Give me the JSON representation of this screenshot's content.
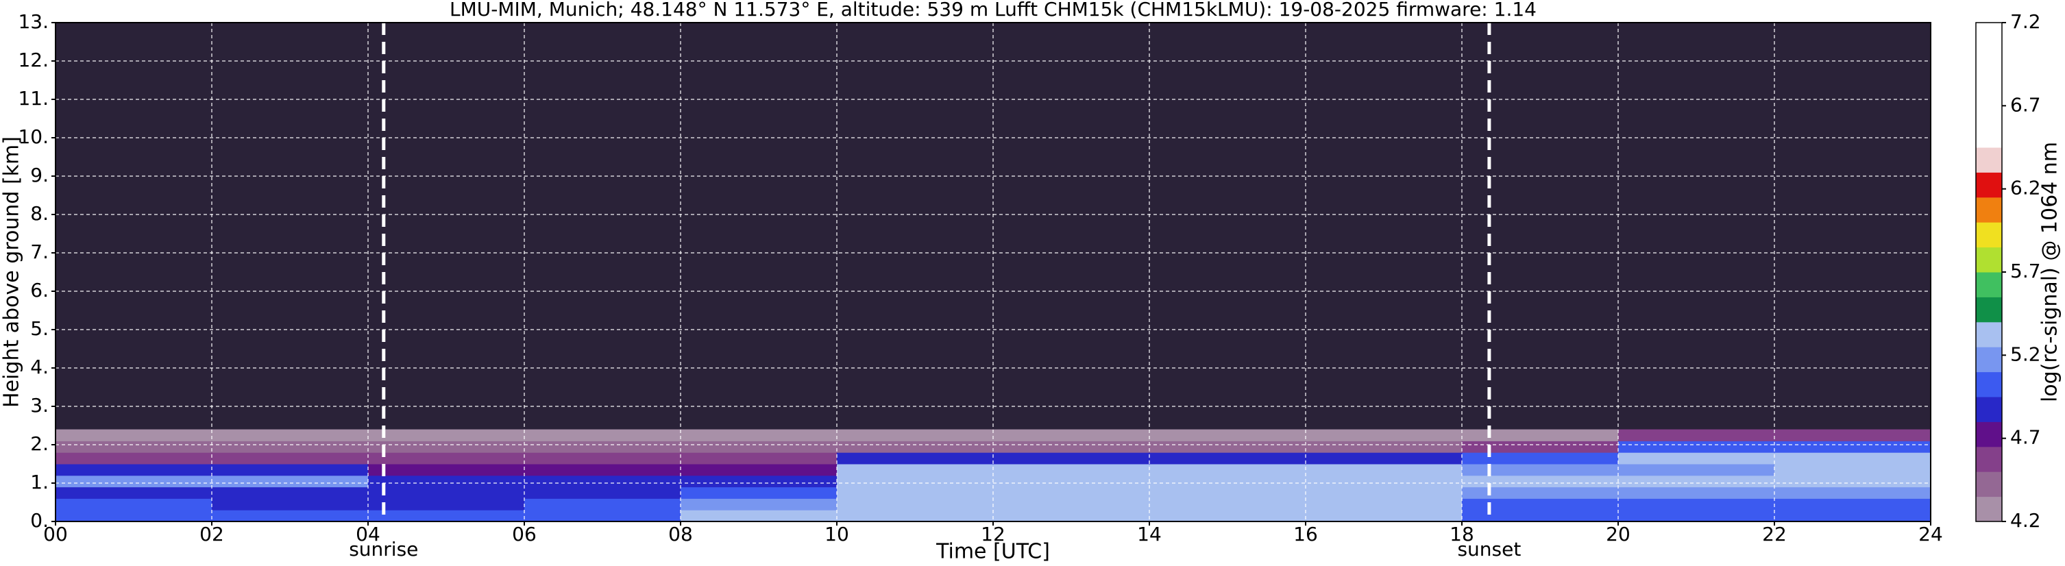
{
  "chart_data": {
    "type": "heatmap",
    "title": "LMU-MIM, Munich; 48.148° N 11.573° E, altitude: 539 m    Lufft CHM15k (CHM15kLMU): 19-08-2025    firmware: 1.14",
    "x_label": "Time [UTC]",
    "y_label": "Height above ground [km]",
    "colorbar_label": "log(rc-signal) @ 1064 nm",
    "xlim": [
      0,
      24
    ],
    "xticks": [
      {
        "value": 0,
        "label": "00"
      },
      {
        "value": 2,
        "label": "02"
      },
      {
        "value": 4,
        "label": "04"
      },
      {
        "value": 6,
        "label": "06"
      },
      {
        "value": 8,
        "label": "08"
      },
      {
        "value": 10,
        "label": "10"
      },
      {
        "value": 12,
        "label": "12"
      },
      {
        "value": 14,
        "label": "14"
      },
      {
        "value": 16,
        "label": "16"
      },
      {
        "value": 18,
        "label": "18"
      },
      {
        "value": 20,
        "label": "20"
      },
      {
        "value": 22,
        "label": "22"
      },
      {
        "value": 24,
        "label": "24"
      }
    ],
    "ylim": [
      0,
      13
    ],
    "yticks": [
      {
        "value": 0,
        "label": "0."
      },
      {
        "value": 1,
        "label": "1."
      },
      {
        "value": 2,
        "label": "2."
      },
      {
        "value": 3,
        "label": "3."
      },
      {
        "value": 4,
        "label": "4."
      },
      {
        "value": 5,
        "label": "5."
      },
      {
        "value": 6,
        "label": "6."
      },
      {
        "value": 7,
        "label": "7."
      },
      {
        "value": 8,
        "label": "8."
      },
      {
        "value": 9,
        "label": "9."
      },
      {
        "value": 10,
        "label": "10."
      },
      {
        "value": 11,
        "label": "11."
      },
      {
        "value": 12,
        "label": "12."
      },
      {
        "value": 13,
        "label": "13."
      }
    ],
    "grid": true,
    "background": "#2a2238",
    "clim": [
      4.2,
      7.2
    ],
    "cticks": [
      4.2,
      4.7,
      5.2,
      5.7,
      6.2,
      6.7,
      7.2
    ],
    "colors": [
      "#a890a8",
      "#946894",
      "#84408a",
      "#60108a",
      "#2828c8",
      "#3c5af0",
      "#7896f0",
      "#a8c0f0",
      "#109048",
      "#40c060",
      "#b0e030",
      "#f0e020",
      "#f08010",
      "#e01010",
      "#f0d0d0",
      "#ffffff",
      "#ffffff",
      "#ffffff",
      "#ffffff",
      "#ffffff"
    ],
    "x_edges": [
      0,
      2,
      4,
      6,
      8,
      10,
      12,
      14,
      16,
      18,
      20,
      22,
      24
    ],
    "y_edges": [
      0,
      0.3,
      0.6,
      0.9,
      1.2,
      1.5,
      1.8,
      2.1,
      2.4
    ],
    "values": [
      [
        5.1,
        5.1,
        5.0,
        5.0,
        5.3,
        5.3,
        5.3,
        5.35,
        5.3,
        5.1,
        5.1,
        5.1
      ],
      [
        4.95,
        4.9,
        4.9,
        4.95,
        5.25,
        5.3,
        5.3,
        5.3,
        5.3,
        5.1,
        5.1,
        5.1
      ],
      [
        4.9,
        4.9,
        4.85,
        4.85,
        5.0,
        5.35,
        5.35,
        5.35,
        5.3,
        5.15,
        5.15,
        5.15
      ],
      [
        5.2,
        5.2,
        4.9,
        4.9,
        4.9,
        5.3,
        5.3,
        5.3,
        5.3,
        5.3,
        5.3,
        5.3
      ],
      [
        4.9,
        4.9,
        4.75,
        4.75,
        4.75,
        5.3,
        5.3,
        5.3,
        5.3,
        5.25,
        5.25,
        5.3
      ],
      [
        4.55,
        4.55,
        4.55,
        4.55,
        4.55,
        4.9,
        4.9,
        4.9,
        4.9,
        4.95,
        5.3,
        5.3
      ],
      [
        4.4,
        4.4,
        4.4,
        4.4,
        4.4,
        4.4,
        4.4,
        4.4,
        4.4,
        4.6,
        5.0,
        5.0
      ],
      [
        4.3,
        4.3,
        4.3,
        4.3,
        4.3,
        4.3,
        4.3,
        4.3,
        4.3,
        4.3,
        4.6,
        4.6
      ]
    ],
    "annotations": [
      {
        "x": 4.2,
        "label": "sunrise"
      },
      {
        "x": 18.35,
        "label": "sunset"
      }
    ]
  }
}
